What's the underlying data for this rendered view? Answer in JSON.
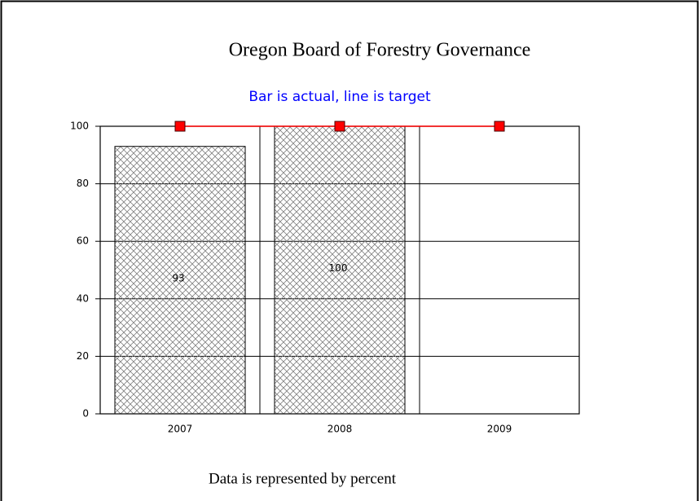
{
  "chart_data": {
    "type": "bar_line",
    "title": "Oregon Board of Forestry Governance",
    "subtitle": "Bar is actual, line is target",
    "note": "Data is represented by percent",
    "categories": [
      "2007",
      "2008",
      "2009"
    ],
    "series": [
      {
        "type": "bar",
        "color": "#808080",
        "values": [
          93,
          100,
          null
        ]
      },
      {
        "type": "line",
        "color": "#ff0000",
        "values": [
          100,
          100,
          100
        ]
      }
    ],
    "ylim": [
      0,
      100
    ],
    "yticks": [
      0,
      20,
      40,
      60,
      80,
      100
    ],
    "grid": true
  }
}
